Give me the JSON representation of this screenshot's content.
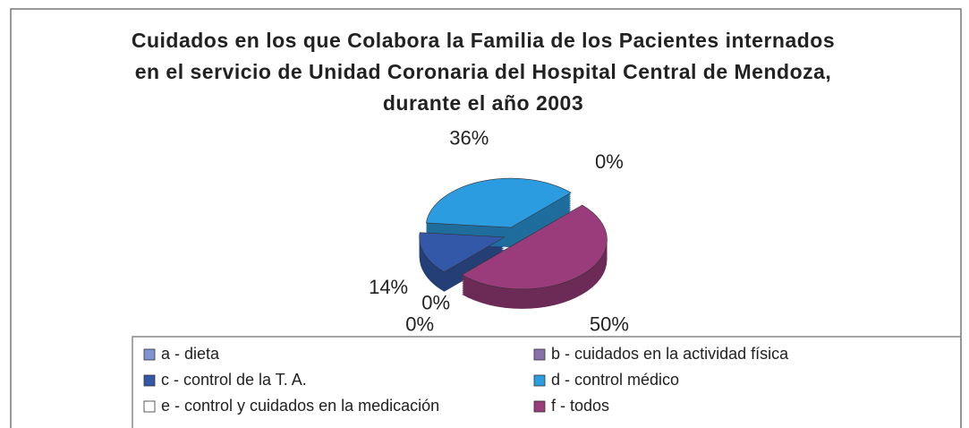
{
  "chart_data": {
    "type": "pie",
    "title": "Cuidados en los que Colabora la Familia de los Pacientes internados en el servicio de Unidad Coronaria del Hospital Central de Mendoza, durante el año 2003",
    "categories": [
      "a - dieta",
      "b - cuidados en la actividad física",
      "c - control de la T. A.",
      "d - control médico",
      "e - control y cuidados en la medicación",
      "f -  todos"
    ],
    "values": [
      0,
      0,
      14,
      36,
      0,
      50
    ],
    "value_labels": [
      "0%",
      "0%",
      "14%",
      "36%",
      "0%",
      "50%"
    ],
    "colors": [
      "#8094d4",
      "#8a70a8",
      "#3458a8",
      "#2c9ce0",
      "#ffffff",
      "#9a3c7c"
    ]
  }
}
